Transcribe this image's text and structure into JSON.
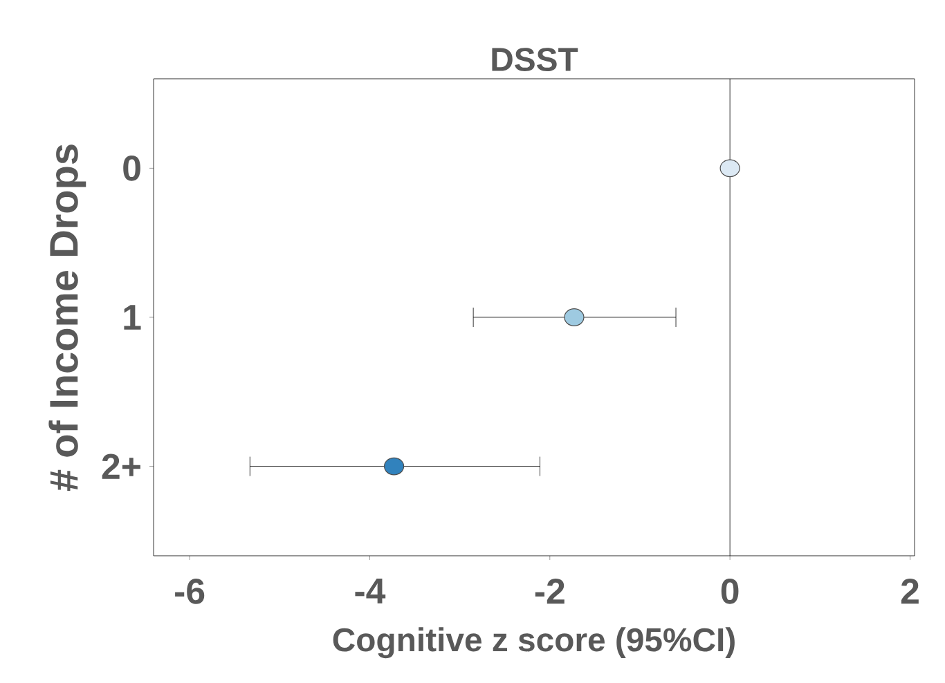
{
  "chart_data": {
    "type": "scatter",
    "orientation": "horizontal",
    "title": "DSST",
    "xlabel": "Cognitive z score (95%CI)",
    "ylabel": "# of Income Drops",
    "categories": [
      "0",
      "1",
      "2+"
    ],
    "values": [
      0.0,
      -1.73,
      -3.73
    ],
    "errors": [
      null,
      [
        -2.85,
        -0.6
      ],
      [
        -5.33,
        -2.11
      ]
    ],
    "colors": [
      "#dce9f4",
      "#9ecae1",
      "#3182bd"
    ],
    "marker": "circle",
    "xlim": [
      -6.4,
      2.05
    ],
    "xticks": [
      -6,
      -4,
      -2,
      0,
      2
    ],
    "ref_lines": [
      {
        "axis": "x",
        "value": 0,
        "color": "#000000"
      }
    ],
    "grid": false
  }
}
